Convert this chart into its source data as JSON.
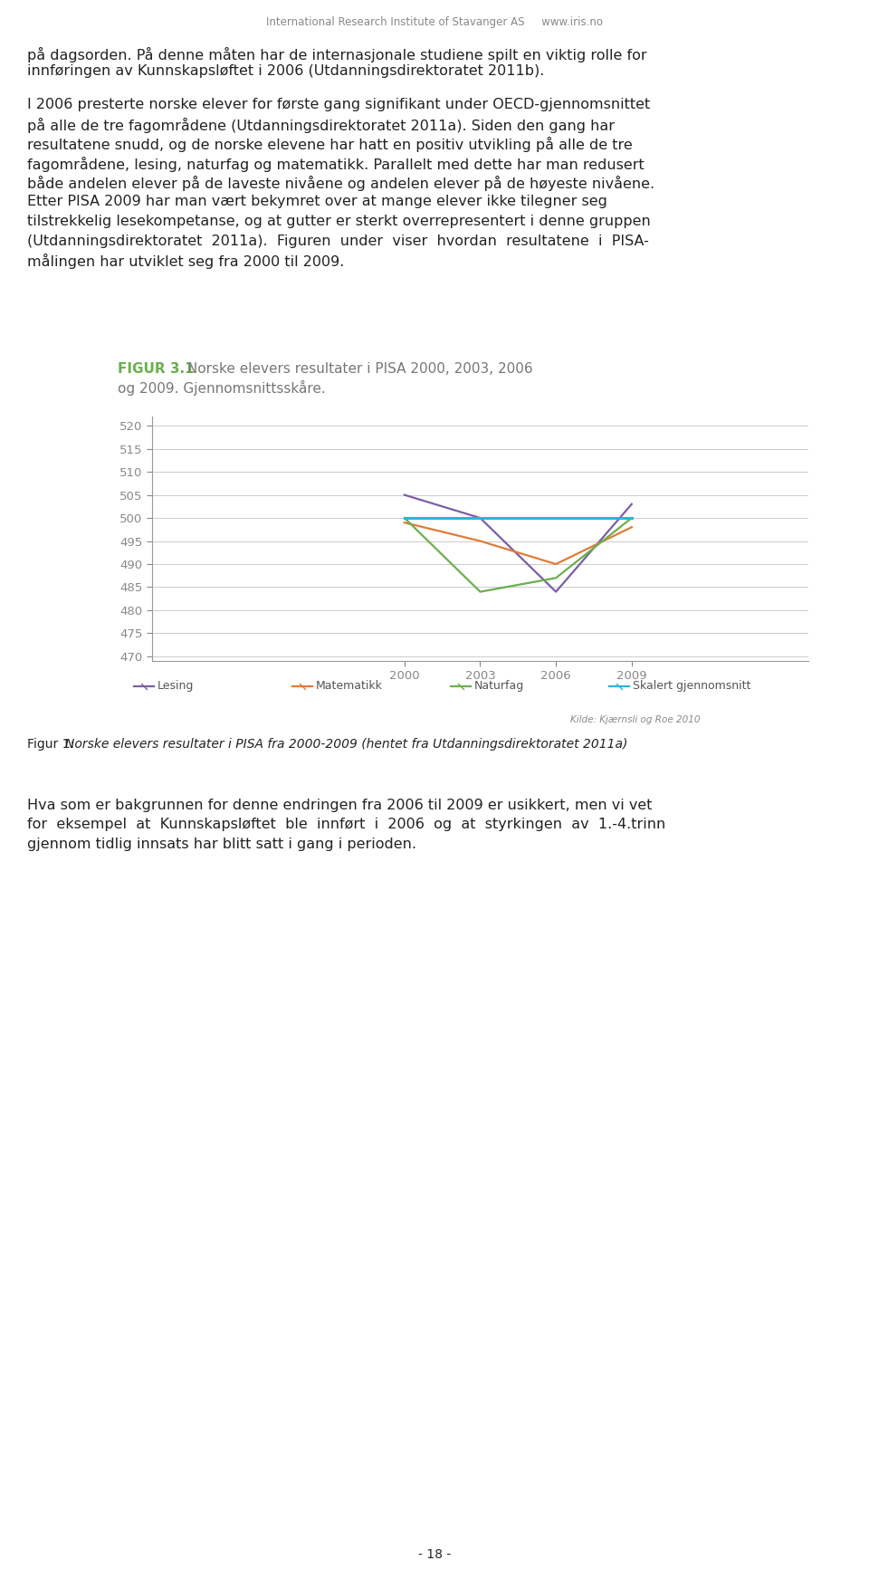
{
  "title_bold": "FIGUR 3.1",
  "title_bold_color": "#6ab04c",
  "title_rest": " Norske elevers resultater i PISA 2000, 2003, 2006",
  "title_rest2": "og 2009. Gjennomsnittsskåre.",
  "title_rest_color": "#777777",
  "years": [
    2000,
    2003,
    2006,
    2009
  ],
  "lesing": [
    505,
    500,
    484,
    503
  ],
  "matematikk": [
    499,
    495,
    490,
    498
  ],
  "naturfag": [
    500,
    484,
    487,
    500
  ],
  "skalert_gjennomsnitt": [
    500,
    500,
    500,
    500
  ],
  "colors": {
    "lesing": "#7b5ea7",
    "matematikk": "#e07b39",
    "naturfag": "#6ab04c",
    "skalert_gjennomsnitt": "#29b6d8"
  },
  "ylim": [
    469,
    522
  ],
  "yticks": [
    470,
    475,
    480,
    485,
    490,
    495,
    500,
    505,
    510,
    515,
    520
  ],
  "xticks": [
    2000,
    2003,
    2006,
    2009
  ],
  "source_text": "Kilde: Kjærnsli og Roe 2010",
  "figure_caption_normal": "Figur 1: ",
  "figure_caption_italic": "Norske elevers resultater i PISA fra 2000-2009 (hentet fra Utdanningsdirektoratet 2011a)",
  "header_text": "International Research Institute of Stavanger AS     www.iris.no",
  "page_text": "- 18 -",
  "body_text_1": "på dagsorden. På denne måten har de internasjonale studiene spilt en viktig rolle for\ninnføringen av Kunnskapsløftet i 2006 (Utdanningsdirektoratet 2011b).",
  "body_text_2_lines": [
    "I 2006 presterte norske elever for første gang signifikant under OECD-gjennomsnittet",
    "på alle de tre fagområdene (Utdanningsdirektoratet 2011a). Siden den gang har",
    "resultatene snudd, og de norske elevene har hatt en positiv utvikling på alle de tre",
    "fagområdene, lesing, naturfag og matematikk. Parallelt med dette har man redusert",
    "både andelen elever på de laveste nivåene og andelen elever på de høyeste nivåene.",
    "Etter PISA 2009 har man vært bekymret over at mange elever ikke tilegner seg",
    "tilstrekkelig lesekompetanse, og at gutter er sterkt overrepresentert i denne gruppen",
    "(Utdanningsdirektoratet  2011a).  Figuren  under  viser  hvordan  resultatene  i  PISA-",
    "målingen har utviklet seg fra 2000 til 2009."
  ],
  "body_text_3_lines": [
    "Hva som er bakgrunnen for denne endringen fra 2006 til 2009 er usikkert, men vi vet",
    "for  eksempel  at  Kunnskapsløftet  ble  innført  i  2006  og  at  styrkingen  av  1.-4.trinn",
    "gjennom tidlig innsats har blitt satt i gang i perioden."
  ],
  "bg_color": "#ffffff",
  "chart_bg_color": "#ffffff",
  "grid_color": "#cccccc",
  "text_color": "#222222",
  "tick_color": "#888888",
  "body_font_size": 11.5,
  "legend_font_size": 9.0
}
